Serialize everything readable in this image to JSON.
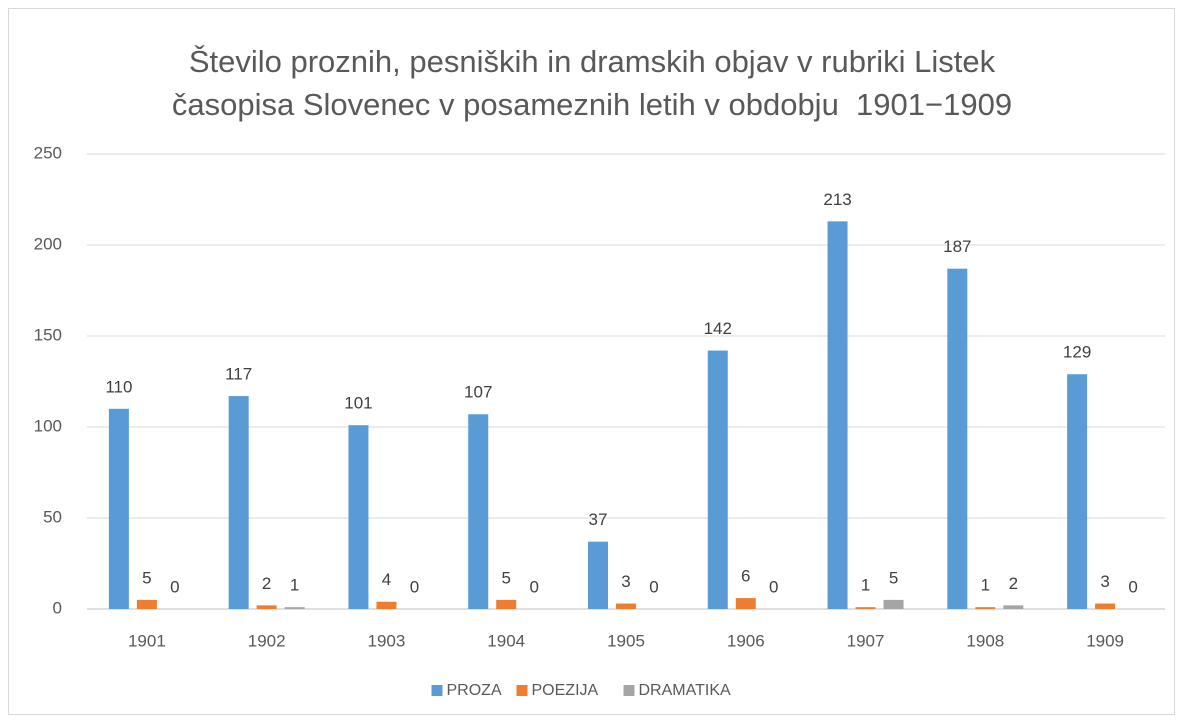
{
  "chart_data": {
    "type": "bar",
    "title": [
      "Število proznih, pesniških in dramskih objav v rubriki Listek",
      "časopisa Slovenec v posameznih letih v obdobju  1901−1909"
    ],
    "categories": [
      "1901",
      "1902",
      "1903",
      "1904",
      "1905",
      "1906",
      "1907",
      "1908",
      "1909"
    ],
    "series": [
      {
        "name": "PROZA",
        "color": "#5b9bd5",
        "values": [
          110,
          117,
          101,
          107,
          37,
          142,
          213,
          187,
          129
        ]
      },
      {
        "name": "POEZIJA",
        "color": "#ed7d31",
        "values": [
          5,
          2,
          4,
          5,
          3,
          6,
          1,
          1,
          3
        ]
      },
      {
        "name": "DRAMATIKA",
        "color": "#a5a5a5",
        "values": [
          0,
          1,
          0,
          0,
          0,
          0,
          5,
          2,
          0
        ]
      }
    ],
    "ylim": [
      0,
      250
    ],
    "yticks": [
      0,
      50,
      100,
      150,
      200,
      250
    ],
    "grid": true,
    "legend": "bottom"
  }
}
